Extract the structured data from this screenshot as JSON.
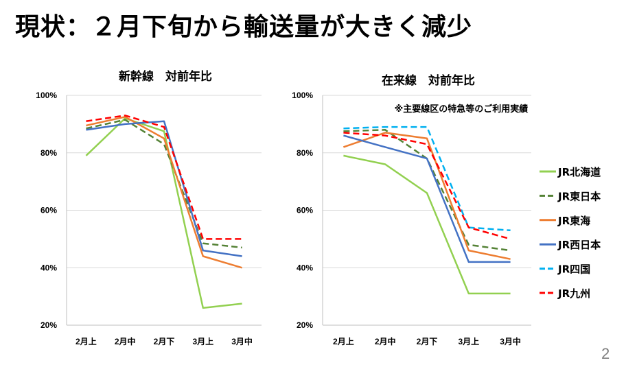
{
  "slide": {
    "title": "現状：２月下旬から輸送量が大きく減少",
    "page_number": "2"
  },
  "legend": [
    {
      "name": "JR北海道",
      "color": "#92d050",
      "dash": "solid"
    },
    {
      "name": "JR東日本",
      "color": "#548235",
      "dash": "dash"
    },
    {
      "name": "JR東海",
      "color": "#ed7d31",
      "dash": "solid"
    },
    {
      "name": "JR西日本",
      "color": "#4472c4",
      "dash": "solid"
    },
    {
      "name": "JR四国",
      "color": "#00b0f0",
      "dash": "dash"
    },
    {
      "name": "JR九州",
      "color": "#ff0000",
      "dash": "dash"
    }
  ],
  "chart_data": [
    {
      "type": "line",
      "title": "新幹線　対前年比",
      "annotation": "",
      "categories": [
        "2月上",
        "2月中",
        "2月下",
        "3月上",
        "3月中"
      ],
      "ylim": [
        20,
        100
      ],
      "yticks": [
        20,
        40,
        60,
        80,
        100
      ],
      "ytick_suffix": "%",
      "grid": true,
      "series": [
        {
          "name": "JR北海道",
          "values": [
            79,
            92,
            87.5,
            26,
            27.5
          ]
        },
        {
          "name": "JR東日本",
          "values": [
            88.5,
            91.5,
            83,
            48.5,
            47
          ]
        },
        {
          "name": "JR東海",
          "values": [
            89.5,
            92.5,
            85,
            44,
            40
          ]
        },
        {
          "name": "JR西日本",
          "values": [
            88,
            90,
            91,
            46,
            44
          ]
        },
        {
          "name": "JR九州",
          "values": [
            91,
            93,
            89,
            50,
            50
          ]
        }
      ]
    },
    {
      "type": "line",
      "title": "在来線　対前年比",
      "annotation": "※主要線区の特急等のご利用実績",
      "categories": [
        "2月上",
        "2月中",
        "2月下",
        "3月上",
        "3月中"
      ],
      "ylim": [
        20,
        100
      ],
      "yticks": [
        20,
        40,
        60,
        80,
        100
      ],
      "ytick_suffix": "%",
      "grid": true,
      "legend_position": "right",
      "series": [
        {
          "name": "JR北海道",
          "values": [
            79,
            76,
            66,
            31,
            31
          ]
        },
        {
          "name": "JR東日本",
          "values": [
            87.5,
            88,
            78,
            48,
            46
          ]
        },
        {
          "name": "JR東海",
          "values": [
            82,
            87,
            85,
            46,
            43
          ]
        },
        {
          "name": "JR西日本",
          "values": [
            86,
            82,
            78,
            42,
            42
          ]
        },
        {
          "name": "JR四国",
          "values": [
            88.5,
            89,
            89,
            54,
            53
          ]
        },
        {
          "name": "JR九州",
          "values": [
            87,
            86,
            83,
            54,
            50
          ]
        }
      ]
    }
  ]
}
